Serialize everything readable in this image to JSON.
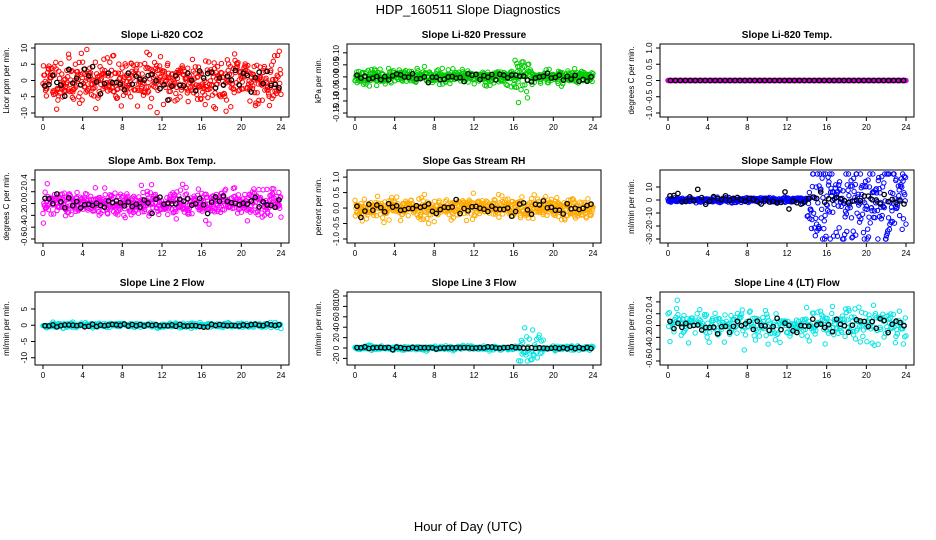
{
  "figure": {
    "title": "HDP_160511  Slope Diagnostics",
    "xlabel": "Hour of Day (UTC)"
  },
  "colors": {
    "background": "#ffffff",
    "axis": "#000000",
    "reference_points": "#000000"
  },
  "chart_data": [
    {
      "type": "scatter",
      "title": "Slope Li-820 CO2",
      "ylabel": "Licor ppm per min.",
      "color": "#ff0000",
      "xlim": [
        0,
        24
      ],
      "ylim": [
        -10,
        10
      ],
      "xticks": [
        "0",
        "4",
        "8",
        "12",
        "16",
        "20",
        "24"
      ],
      "yticks": [
        "-10",
        "-5",
        "0",
        "5",
        "10"
      ],
      "spread": [
        4,
        5
      ],
      "density": "high",
      "seed": 11
    },
    {
      "type": "scatter",
      "title": "Slope Li-820 Pressure",
      "ylabel": "kPa per min.",
      "color": "#00cc00",
      "xlim": [
        0,
        24
      ],
      "ylim": [
        -0.15,
        0.12
      ],
      "xticks": [
        "0",
        "4",
        "8",
        "12",
        "16",
        "20",
        "24"
      ],
      "yticks": [
        "-0.15",
        "-0.10",
        "-0.05",
        "0.00",
        "0.05",
        "0.10"
      ],
      "spread": [
        0.02,
        0.02
      ],
      "burst": {
        "from": 16,
        "to": 18,
        "scale": 3
      },
      "density": "high",
      "seed": 23
    },
    {
      "type": "scatter",
      "title": "Slope Li-820 Temp.",
      "ylabel": "degrees C per min.",
      "color": "#cc00cc",
      "xlim": [
        0,
        24
      ],
      "ylim": [
        -1.0,
        1.0
      ],
      "xticks": [
        "0",
        "4",
        "8",
        "12",
        "16",
        "20",
        "24"
      ],
      "yticks": [
        "-1.0",
        "-0.5",
        "0.0",
        "0.5",
        "1.0"
      ],
      "spread": [
        0.0,
        0.0
      ],
      "density": "line",
      "seed": 31
    },
    {
      "type": "scatter",
      "title": "Slope Amb. Box Temp.",
      "ylabel": "degrees C per min.",
      "color": "#ff00ff",
      "xlim": [
        0,
        24
      ],
      "ylim": [
        -0.6,
        0.5
      ],
      "xticks": [
        "0",
        "4",
        "8",
        "12",
        "16",
        "20",
        "24"
      ],
      "yticks": [
        "-0.6",
        "-0.4",
        "-0.2",
        "0.0",
        "0.2",
        "0.4"
      ],
      "spread": [
        0.2,
        0.15
      ],
      "density": "high",
      "seed": 47
    },
    {
      "type": "scatter",
      "title": "Slope Gas Stream RH",
      "ylabel": "percent per min.",
      "color": "#ffaa00",
      "xlim": [
        0,
        24
      ],
      "ylim": [
        -1.0,
        1.1
      ],
      "xticks": [
        "0",
        "4",
        "8",
        "12",
        "16",
        "20",
        "24"
      ],
      "yticks": [
        "-1.0",
        "-0.5",
        "0.0",
        "0.5",
        "1.0"
      ],
      "spread": [
        0.4,
        0.25
      ],
      "density": "high",
      "seed": 53
    },
    {
      "type": "scatter",
      "title": "Slope Sample Flow",
      "ylabel": "ml/min per min.",
      "color": "#0000ff",
      "xlim": [
        0,
        24
      ],
      "ylim": [
        -30,
        20
      ],
      "xticks": [
        "0",
        "4",
        "8",
        "12",
        "16",
        "20",
        "24"
      ],
      "yticks": [
        "-30",
        "-20",
        "-10",
        "0",
        "10"
      ],
      "spread": [
        1.5,
        8
      ],
      "trend": {
        "from": 14,
        "scale": 1
      },
      "density": "high",
      "seed": 61
    },
    {
      "type": "scatter",
      "title": "Slope Line 2 Flow",
      "ylabel": "ml/min per min.",
      "color": "#00e5e5",
      "xlim": [
        0,
        24
      ],
      "ylim": [
        -11,
        9
      ],
      "xticks": [
        "0",
        "4",
        "8",
        "12",
        "16",
        "20",
        "24"
      ],
      "yticks": [
        "-10",
        "-5",
        "0",
        "5"
      ],
      "spread": [
        3,
        0.6
      ],
      "density": "medium",
      "seed": 71
    },
    {
      "type": "scatter",
      "title": "Slope Line 3 Flow",
      "ylabel": "ml/min per min.",
      "color": "#00e5e5",
      "xlim": [
        0,
        24
      ],
      "ylim": [
        -25,
        100
      ],
      "xticks": [
        "0",
        "4",
        "8",
        "12",
        "16",
        "20",
        "24"
      ],
      "yticks": [
        "-20",
        "0",
        "20",
        "40",
        "60",
        "80",
        "100"
      ],
      "spread": [
        3,
        3
      ],
      "burst": {
        "from": 16.5,
        "to": 19,
        "scale": 8
      },
      "density": "medium",
      "seed": 83
    },
    {
      "type": "scatter",
      "title": "Slope Line 4 (LT) Flow",
      "ylabel": "ml/min per min.",
      "color": "#00e5e5",
      "xlim": [
        0,
        24
      ],
      "ylim": [
        -0.6,
        0.5
      ],
      "xticks": [
        "0",
        "4",
        "8",
        "12",
        "16",
        "20",
        "24"
      ],
      "yticks": [
        "-0.6",
        "-0.4",
        "-0.2",
        "0.0",
        "0.2",
        "0.4"
      ],
      "spread": [
        0.2,
        0.2
      ],
      "density": "medium",
      "seed": 97
    }
  ]
}
